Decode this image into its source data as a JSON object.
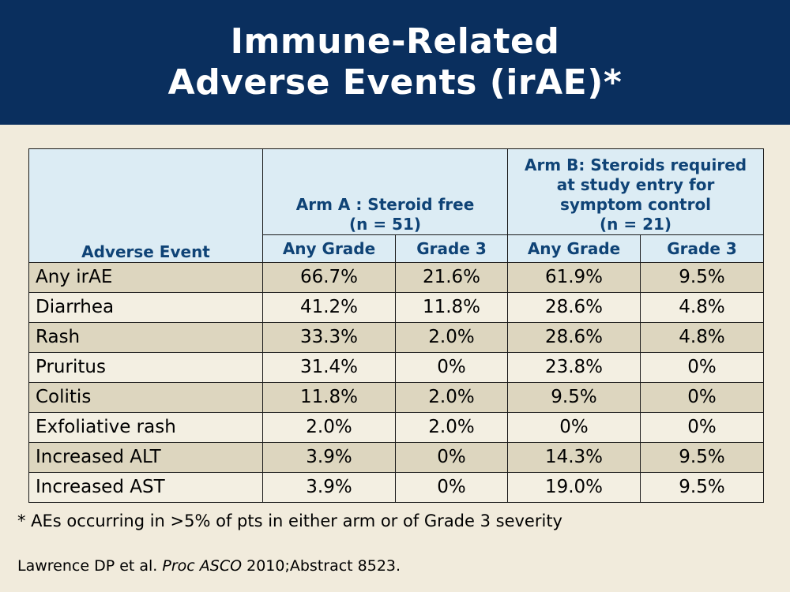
{
  "title": {
    "line1": "Immune-Related",
    "line2": "Adverse Events (irAE)*"
  },
  "table": {
    "event_header": "Adverse Event",
    "arm_a": {
      "line1": "Arm A : Steroid free",
      "line2": "(n = 51)"
    },
    "arm_b": {
      "line1": "Arm B: Steroids required",
      "line2": "at study entry for",
      "line3": "symptom control",
      "line4": "(n = 21)"
    },
    "sub_headers": [
      "Any Grade",
      "Grade 3",
      "Any Grade",
      "Grade 3"
    ],
    "rows": [
      {
        "event": "Any irAE",
        "a_any": "66.7%",
        "a_g3": "21.6%",
        "b_any": "61.9%",
        "b_g3": "9.5%"
      },
      {
        "event": "Diarrhea",
        "a_any": "41.2%",
        "a_g3": "11.8%",
        "b_any": "28.6%",
        "b_g3": "4.8%"
      },
      {
        "event": "Rash",
        "a_any": "33.3%",
        "a_g3": "2.0%",
        "b_any": "28.6%",
        "b_g3": "4.8%"
      },
      {
        "event": "Pruritus",
        "a_any": "31.4%",
        "a_g3": "0%",
        "b_any": "23.8%",
        "b_g3": "0%"
      },
      {
        "event": "Colitis",
        "a_any": "11.8%",
        "a_g3": "2.0%",
        "b_any": "9.5%",
        "b_g3": "0%"
      },
      {
        "event": "Exfoliative rash",
        "a_any": "2.0%",
        "a_g3": "2.0%",
        "b_any": "0%",
        "b_g3": "0%"
      },
      {
        "event": "Increased ALT",
        "a_any": "3.9%",
        "a_g3": "0%",
        "b_any": "14.3%",
        "b_g3": "9.5%"
      },
      {
        "event": "Increased AST",
        "a_any": "3.9%",
        "a_g3": "0%",
        "b_any": "19.0%",
        "b_g3": "9.5%"
      }
    ]
  },
  "footnote": "* AEs occurring in >5% of pts in either arm or of Grade 3 severity",
  "citation": {
    "authors": "Lawrence DP et al. ",
    "journal": "Proc ASCO",
    "rest": " 2010;Abstract 8523."
  },
  "colors": {
    "title_bar": "#0a2f5e",
    "header_bg": "#dcecf4",
    "header_text": "#0f4376",
    "shaded_row": "#ddd6bf",
    "background": "#f1ebdc"
  }
}
